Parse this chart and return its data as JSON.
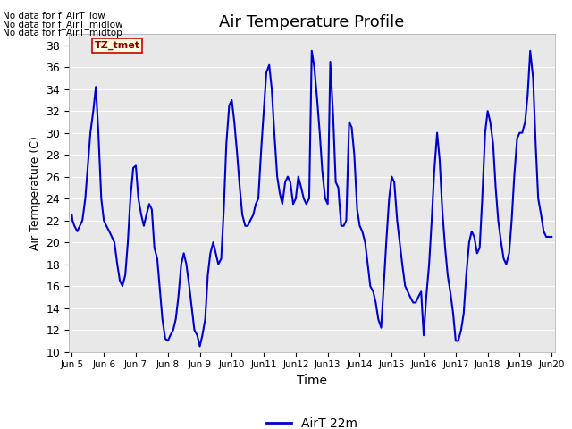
{
  "title": "Air Temperature Profile",
  "xlabel": "Time",
  "ylabel": "Air Termperature (C)",
  "ylim": [
    10,
    39
  ],
  "yticks": [
    10,
    12,
    14,
    16,
    18,
    20,
    22,
    24,
    26,
    28,
    30,
    32,
    34,
    36,
    38
  ],
  "line_color": "#0000cc",
  "line_width": 1.5,
  "background_color": "#e8e8e8",
  "figure_bg": "#ffffff",
  "legend_label": "AirT 22m",
  "text_annotations": [
    "No data for f_AirT_low",
    "No data for f_AirT_midlow",
    "No data for f_AirT_midtop"
  ],
  "tz_label": "TZ_tmet",
  "x_start_day": 5,
  "x_end_day": 20,
  "x_tick_days": [
    5,
    6,
    7,
    8,
    9,
    10,
    11,
    12,
    13,
    14,
    15,
    16,
    17,
    18,
    19,
    20
  ],
  "x_tick_labels": [
    "Jun 5",
    "Jun 6",
    "Jun 7",
    "Jun 8",
    "Jun 9",
    "Jun 10",
    "Jun 11",
    "Jun 12",
    "Jun 13",
    "Jun 14",
    "Jun 15",
    "Jun 16",
    "Jun 17",
    "Jun 18",
    "Jun 19",
    "Jun 20"
  ],
  "data_x": [
    5.0,
    5.02,
    5.08,
    5.17,
    5.25,
    5.33,
    5.42,
    5.5,
    5.58,
    5.67,
    5.75,
    5.83,
    5.92,
    6.0,
    6.08,
    6.17,
    6.25,
    6.33,
    6.42,
    6.5,
    6.58,
    6.67,
    6.75,
    6.83,
    6.92,
    7.0,
    7.08,
    7.17,
    7.25,
    7.33,
    7.42,
    7.5,
    7.58,
    7.67,
    7.75,
    7.83,
    7.92,
    8.0,
    8.08,
    8.17,
    8.25,
    8.33,
    8.42,
    8.5,
    8.58,
    8.67,
    8.75,
    8.83,
    8.92,
    9.0,
    9.08,
    9.17,
    9.25,
    9.33,
    9.42,
    9.5,
    9.58,
    9.67,
    9.75,
    9.83,
    9.92,
    10.0,
    10.08,
    10.17,
    10.25,
    10.33,
    10.42,
    10.5,
    10.58,
    10.67,
    10.75,
    10.83,
    10.92,
    11.0,
    11.08,
    11.17,
    11.25,
    11.33,
    11.42,
    11.5,
    11.58,
    11.67,
    11.75,
    11.83,
    11.92,
    12.0,
    12.08,
    12.17,
    12.25,
    12.33,
    12.42,
    12.5,
    12.58,
    12.67,
    12.75,
    12.83,
    12.92,
    13.0,
    13.08,
    13.17,
    13.25,
    13.33,
    13.42,
    13.5,
    13.58,
    13.67,
    13.75,
    13.83,
    13.92,
    14.0,
    14.08,
    14.17,
    14.25,
    14.33,
    14.42,
    14.5,
    14.58,
    14.67,
    14.75,
    14.83,
    14.92,
    15.0,
    15.08,
    15.17,
    15.25,
    15.33,
    15.42,
    15.5,
    15.58,
    15.67,
    15.75,
    15.83,
    15.92,
    16.0,
    16.08,
    16.17,
    16.25,
    16.33,
    16.42,
    16.5,
    16.58,
    16.67,
    16.75,
    16.83,
    16.92,
    17.0,
    17.08,
    17.17,
    17.25,
    17.33,
    17.42,
    17.5,
    17.58,
    17.67,
    17.75,
    17.83,
    17.92,
    18.0,
    18.08,
    18.17,
    18.25,
    18.33,
    18.42,
    18.5,
    18.58,
    18.67,
    18.75,
    18.83,
    18.92,
    19.0,
    19.08,
    19.17,
    19.25,
    19.33,
    19.42,
    19.5,
    19.58,
    19.67,
    19.75,
    19.83,
    19.92,
    20.0
  ],
  "data_y": [
    22.5,
    22.0,
    21.5,
    21.0,
    21.5,
    22.0,
    24.0,
    27.0,
    30.0,
    32.0,
    34.2,
    30.0,
    24.0,
    22.0,
    21.5,
    21.0,
    20.5,
    20.0,
    18.0,
    16.5,
    16.0,
    17.0,
    20.0,
    24.0,
    26.8,
    27.0,
    24.0,
    22.5,
    21.5,
    22.5,
    23.5,
    23.0,
    19.5,
    18.5,
    15.7,
    13.0,
    11.2,
    11.0,
    11.5,
    12.0,
    13.0,
    15.0,
    18.0,
    19.0,
    18.0,
    16.0,
    14.0,
    12.0,
    11.5,
    10.5,
    11.5,
    13.0,
    17.0,
    19.0,
    20.0,
    19.0,
    18.0,
    18.5,
    23.0,
    29.0,
    32.5,
    33.0,
    31.0,
    28.0,
    25.0,
    22.5,
    21.5,
    21.5,
    22.0,
    22.5,
    23.5,
    24.0,
    28.5,
    32.0,
    35.5,
    36.2,
    34.0,
    30.0,
    26.0,
    24.5,
    23.5,
    25.5,
    26.0,
    25.5,
    23.5,
    24.0,
    26.0,
    25.0,
    24.0,
    23.5,
    24.0,
    37.5,
    36.0,
    33.0,
    30.0,
    26.5,
    24.0,
    23.5,
    36.5,
    31.5,
    25.5,
    25.0,
    21.5,
    21.5,
    22.0,
    31.0,
    30.5,
    28.0,
    23.0,
    21.5,
    21.0,
    20.0,
    18.0,
    16.0,
    15.5,
    14.5,
    13.0,
    12.2,
    16.0,
    20.0,
    24.0,
    26.0,
    25.5,
    22.0,
    20.0,
    18.0,
    16.0,
    15.5,
    15.0,
    14.5,
    14.5,
    15.0,
    15.5,
    11.5,
    15.0,
    18.0,
    22.0,
    26.5,
    30.0,
    27.5,
    23.0,
    19.5,
    17.0,
    15.5,
    13.5,
    11.0,
    11.0,
    12.0,
    13.5,
    17.0,
    20.0,
    21.0,
    20.5,
    19.0,
    19.5,
    24.0,
    30.0,
    32.0,
    31.0,
    29.0,
    25.0,
    22.0,
    20.0,
    18.5,
    18.0,
    19.0,
    22.0,
    26.0,
    29.5,
    30.0,
    30.0,
    31.0,
    33.5,
    37.5,
    35.0,
    29.0,
    24.0,
    22.5,
    21.0,
    20.5,
    20.5,
    20.5
  ]
}
